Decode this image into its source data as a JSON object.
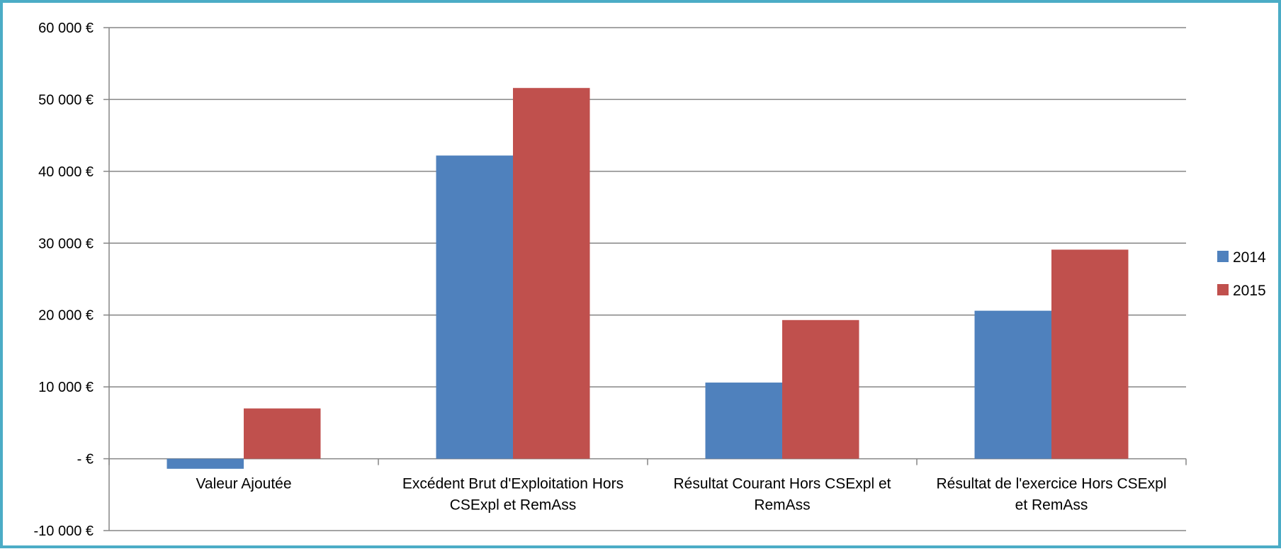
{
  "chart_data": {
    "type": "bar",
    "title": "",
    "xlabel": "",
    "ylabel": "",
    "categories": [
      [
        "Valeur Ajoutée"
      ],
      [
        "Excédent Brut d'Exploitation Hors",
        "CSExpl et RemAss"
      ],
      [
        "Résultat Courant Hors CSExpl et",
        "RemAss"
      ],
      [
        "Résultat de l'exercice Hors CSExpl",
        "et RemAss"
      ]
    ],
    "series": [
      {
        "name": "2014",
        "color": "#4f81bd",
        "values": [
          -1400,
          42200,
          10600,
          20600
        ]
      },
      {
        "name": "2015",
        "color": "#c0504d",
        "values": [
          7000,
          51600,
          19300,
          29100
        ]
      }
    ],
    "ylim": [
      -10000,
      60000
    ],
    "yticks": [
      60000,
      50000,
      40000,
      30000,
      20000,
      10000,
      0,
      -10000
    ],
    "ytick_labels": [
      "60 000 €",
      "50 000 €",
      "40 000 €",
      "30 000 €",
      "20 000 €",
      "10 000 €",
      "-  €",
      "-10 000 €"
    ],
    "grid": true,
    "legend_position": "right"
  }
}
